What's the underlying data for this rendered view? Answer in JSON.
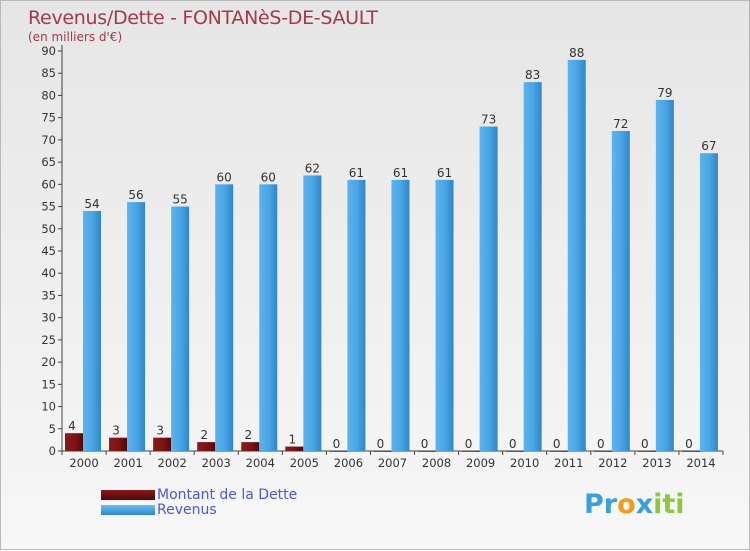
{
  "chart_data": {
    "type": "bar",
    "title": "Revenus/Dette - FONTANèS-DE-SAULT",
    "subtitle": "(en milliers d'€)",
    "categories": [
      "2000",
      "2001",
      "2002",
      "2003",
      "2004",
      "2005",
      "2006",
      "2007",
      "2008",
      "2009",
      "2010",
      "2011",
      "2012",
      "2013",
      "2014"
    ],
    "series": [
      {
        "name": "Montant de la Dette",
        "color": "#7a1414",
        "values": [
          4,
          3,
          3,
          2,
          2,
          1,
          0,
          0,
          0,
          0,
          0,
          0,
          0,
          0,
          0
        ]
      },
      {
        "name": "Revenus",
        "color": "#4aa3e3",
        "values": [
          54,
          56,
          55,
          60,
          60,
          62,
          61,
          61,
          61,
          73,
          83,
          88,
          72,
          79,
          67
        ]
      }
    ],
    "ylim": [
      0,
      90
    ],
    "yticks": [
      0,
      5,
      10,
      15,
      20,
      25,
      30,
      35,
      40,
      45,
      50,
      55,
      60,
      65,
      70,
      75,
      80,
      85,
      90
    ],
    "grid": false,
    "legend_position": "bottom-left"
  },
  "logo": {
    "letters": [
      {
        "ch": "P",
        "color": "#3aa0dc"
      },
      {
        "ch": "r",
        "color": "#3aa0dc"
      },
      {
        "ch": "o",
        "color": "#f29a1a"
      },
      {
        "ch": "x",
        "color": "#3aa0dc"
      },
      {
        "ch": "i",
        "color": "#8dc63f"
      },
      {
        "ch": "t",
        "color": "#8dc63f"
      },
      {
        "ch": "i",
        "color": "#8dc63f"
      }
    ]
  }
}
